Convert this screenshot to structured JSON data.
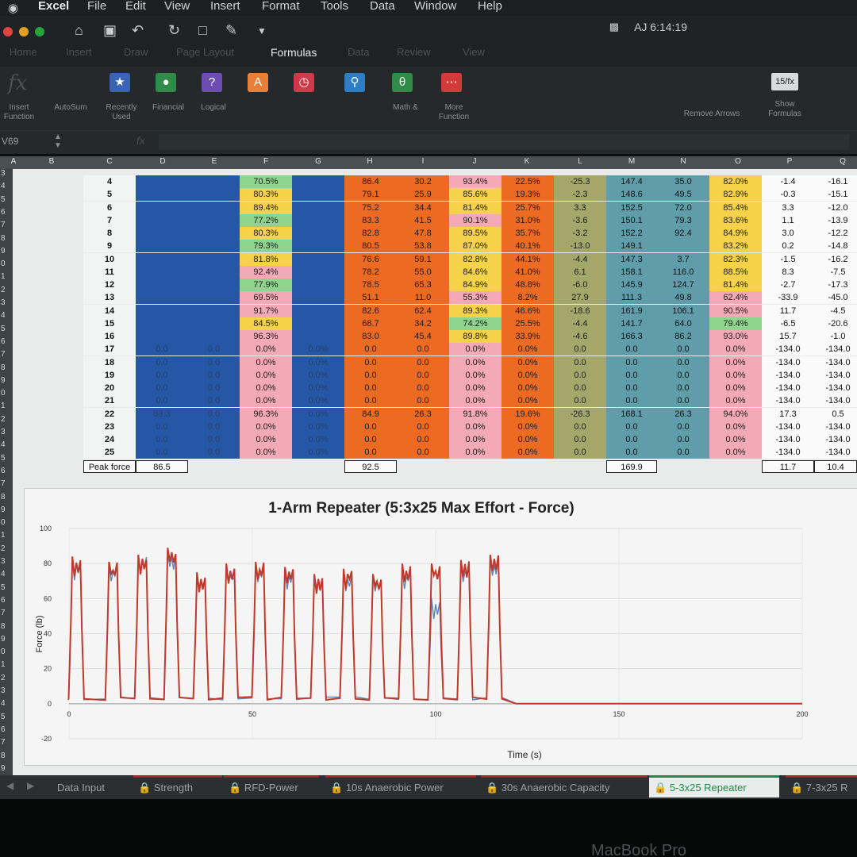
{
  "menu": {
    "app": "Excel",
    "items": [
      "File",
      "Edit",
      "View",
      "Insert",
      "Format",
      "Tools",
      "Data",
      "Window",
      "Help"
    ]
  },
  "status": {
    "clock": "AJ 6:14:19"
  },
  "ribbon_tabs": [
    "Home",
    "Insert",
    "Draw",
    "Page Layout",
    "Formulas",
    "Data",
    "Review",
    "View"
  ],
  "active_ribbon_tab": "Formulas",
  "ribbon_buttons": {
    "insert_function": "Insert Function",
    "autosum": "AutoSum",
    "recently_used": "Recently Used",
    "financial": "Financial",
    "logical": "Logical",
    "math": "Math &",
    "more": "More Function",
    "remove_arrows": "Remove Arrows",
    "show_formulas": "Show Formulas"
  },
  "name_box": "V69",
  "fx_symbol": "fx",
  "column_headers": [
    "A",
    "B",
    "C",
    "D",
    "E",
    "F",
    "G",
    "H",
    "I",
    "J",
    "K",
    "L",
    "M",
    "N",
    "O",
    "P",
    "Q"
  ],
  "row_header_start": 3,
  "table": {
    "rows": [
      [
        "4",
        "",
        "",
        "70.5%",
        "",
        "86.4",
        "30.2",
        "93.4%",
        "22.5%",
        "-25.3",
        "147.4",
        "35.0",
        "82.0%",
        "-1.4",
        "-16.1"
      ],
      [
        "5",
        "",
        "",
        "80.3%",
        "",
        "79.1",
        "25.9",
        "85.6%",
        "19.3%",
        "-2.3",
        "148.6",
        "49.5",
        "82.9%",
        "-0.3",
        "-15.1"
      ],
      [
        "6",
        "",
        "",
        "89.4%",
        "",
        "75.2",
        "34.4",
        "81.4%",
        "25.7%",
        "3.3",
        "152.5",
        "72.0",
        "85.4%",
        "3.3",
        "-12.0"
      ],
      [
        "7",
        "",
        "",
        "77.2%",
        "",
        "83.3",
        "41.5",
        "90.1%",
        "31.0%",
        "-3.6",
        "150.1",
        "79.3",
        "83.6%",
        "1.1",
        "-13.9"
      ],
      [
        "8",
        "",
        "",
        "80.3%",
        "",
        "82.8",
        "47.8",
        "89.5%",
        "35.7%",
        "-3.2",
        "152.2",
        "92.4",
        "84.9%",
        "3.0",
        "-12.2"
      ],
      [
        "9",
        "",
        "",
        "79.3%",
        "",
        "80.5",
        "53.8",
        "87.0%",
        "40.1%",
        "-13.0",
        "149.1",
        "",
        "83.2%",
        "0.2",
        "-14.8"
      ],
      [
        "10",
        "",
        "",
        "81.8%",
        "",
        "76.6",
        "59.1",
        "82.8%",
        "44.1%",
        "-4.4",
        "147.3",
        "3.7",
        "82.3%",
        "-1.5",
        "-16.2"
      ],
      [
        "11",
        "",
        "",
        "92.4%",
        "",
        "78.2",
        "55.0",
        "84.6%",
        "41.0%",
        "6.1",
        "158.1",
        "116.0",
        "88.5%",
        "8.3",
        "-7.5"
      ],
      [
        "12",
        "",
        "",
        "77.9%",
        "",
        "78.5",
        "65.3",
        "84.9%",
        "48.8%",
        "-6.0",
        "145.9",
        "124.7",
        "81.4%",
        "-2.7",
        "-17.3"
      ],
      [
        "13",
        "",
        "",
        "69.5%",
        "",
        "51.1",
        "11.0",
        "55.3%",
        "8.2%",
        "27.9",
        "111.3",
        "49.8",
        "62.4%",
        "-33.9",
        "-45.0"
      ],
      [
        "14",
        "",
        "",
        "91.7%",
        "",
        "82.6",
        "62.4",
        "89.3%",
        "46.6%",
        "-18.6",
        "161.9",
        "106.1",
        "90.5%",
        "11.7",
        "-4.5"
      ],
      [
        "15",
        "",
        "",
        "84.5%",
        "",
        "68.7",
        "34.2",
        "74.2%",
        "25.5%",
        "-4.4",
        "141.7",
        "64.0",
        "79.4%",
        "-6.5",
        "-20.6"
      ],
      [
        "16",
        "",
        "",
        "96.3%",
        "",
        "83.0",
        "45.4",
        "89.8%",
        "33.9%",
        "-4.6",
        "166.3",
        "86.2",
        "93.0%",
        "15.7",
        "-1.0"
      ],
      [
        "17",
        "0.0",
        "0.0",
        "0.0%",
        "0.0%",
        "0.0",
        "0.0",
        "0.0%",
        "0.0%",
        "0.0",
        "0.0",
        "0.0",
        "0.0%",
        "-134.0",
        "-134.0"
      ],
      [
        "18",
        "0.0",
        "0.0",
        "0.0%",
        "0.0%",
        "0.0",
        "0.0",
        "0.0%",
        "0.0%",
        "0.0",
        "0.0",
        "0.0",
        "0.0%",
        "-134.0",
        "-134.0"
      ],
      [
        "19",
        "0.0",
        "0.0",
        "0.0%",
        "0.0%",
        "0.0",
        "0.0",
        "0.0%",
        "0.0%",
        "0.0",
        "0.0",
        "0.0",
        "0.0%",
        "-134.0",
        "-134.0"
      ],
      [
        "20",
        "0.0",
        "0.0",
        "0.0%",
        "0.0%",
        "0.0",
        "0.0",
        "0.0%",
        "0.0%",
        "0.0",
        "0.0",
        "0.0",
        "0.0%",
        "-134.0",
        "-134.0"
      ],
      [
        "21",
        "0.0",
        "0.0",
        "0.0%",
        "0.0%",
        "0.0",
        "0.0",
        "0.0%",
        "0.0%",
        "0.0",
        "0.0",
        "0.0",
        "0.0%",
        "-134.0",
        "-134.0"
      ],
      [
        "22",
        "83.3",
        "0.0",
        "96.3%",
        "0.0%",
        "84.9",
        "26.3",
        "91.8%",
        "19.6%",
        "-26.3",
        "168.1",
        "26.3",
        "94.0%",
        "17.3",
        "0.5"
      ],
      [
        "23",
        "0.0",
        "0.0",
        "0.0%",
        "0.0%",
        "0.0",
        "0.0",
        "0.0%",
        "0.0%",
        "0.0",
        "0.0",
        "0.0",
        "0.0%",
        "-134.0",
        "-134.0"
      ],
      [
        "24",
        "0.0",
        "0.0",
        "0.0%",
        "0.0%",
        "0.0",
        "0.0",
        "0.0%",
        "0.0%",
        "0.0",
        "0.0",
        "0.0",
        "0.0%",
        "-134.0",
        "-134.0"
      ],
      [
        "25",
        "0.0",
        "0.0",
        "0.0%",
        "0.0%",
        "0.0",
        "0.0",
        "0.0%",
        "0.0%",
        "0.0",
        "0.0",
        "0.0",
        "0.0%",
        "-134.0",
        "-134.0"
      ]
    ],
    "peak_label": "Peak force",
    "peak_values": {
      "D": "86.5",
      "H": "92.5",
      "M": "169.9",
      "P": "11.7",
      "Q": "10.4"
    }
  },
  "colors": {
    "blue": "#2457a6",
    "orange": "#ec6a22",
    "pink": "#f3a9b6",
    "yellow": "#f5d24a",
    "green": "#8fd48c",
    "olive": "#a5a66a",
    "teal": "#5f9dab",
    "series_red": "#c0392b",
    "series_blue": "#5b86b8"
  },
  "chart_data": {
    "type": "line",
    "title": "1-Arm Repeater (5:3x25 Max Effort - Force)",
    "xlabel": "Time (s)",
    "ylabel": "Force (lb)",
    "xlim": [
      0,
      200
    ],
    "ylim": [
      -20,
      100
    ],
    "xticks": [
      0,
      50,
      100,
      150,
      200
    ],
    "yticks": [
      -20,
      0,
      20,
      40,
      60,
      80,
      100
    ],
    "grid": true,
    "reps": [
      {
        "start": 0.5,
        "end": 3.5,
        "peak": 84,
        "peak2": 82
      },
      {
        "start": 10.5,
        "end": 13.5,
        "peak": 81,
        "peak2": 79
      },
      {
        "start": 18.5,
        "end": 21.5,
        "peak": 85,
        "peak2": 84
      },
      {
        "start": 26.5,
        "end": 29.5,
        "peak": 89,
        "peak2": 86
      },
      {
        "start": 34.5,
        "end": 37.5,
        "peak": 75,
        "peak2": 74
      },
      {
        "start": 42.5,
        "end": 45.5,
        "peak": 80,
        "peak2": 76
      },
      {
        "start": 50.5,
        "end": 53.5,
        "peak": 81,
        "peak2": 79
      },
      {
        "start": 58.5,
        "end": 61.5,
        "peak": 78,
        "peak2": 76
      },
      {
        "start": 66.5,
        "end": 69.5,
        "peak": 74,
        "peak2": 73
      },
      {
        "start": 74.5,
        "end": 77.5,
        "peak": 77,
        "peak2": 75
      },
      {
        "start": 82.5,
        "end": 85.5,
        "peak": 74,
        "peak2": 72
      },
      {
        "start": 90.5,
        "end": 93.5,
        "peak": 80,
        "peak2": 77
      },
      {
        "start": 98.5,
        "end": 101.5,
        "peak": 80,
        "peak2": 60
      },
      {
        "start": 106.5,
        "end": 109.5,
        "peak": 82,
        "peak2": 80
      },
      {
        "start": 114.5,
        "end": 117.5,
        "peak": 85,
        "peak2": 83
      }
    ],
    "series": [
      {
        "name": "",
        "color": "#c0392b"
      },
      {
        "name": "",
        "color": "#5b86b8"
      }
    ]
  },
  "sheet_tabs": [
    "Data Input",
    "Strength",
    "RFD-Power",
    "10s Anaerobic Power",
    "30s Anaerobic Capacity",
    "5-3x25 Repeater",
    "7-3x25 R"
  ],
  "active_sheet": "5-3x25 Repeater",
  "bezel_brand": "MacBook Pro"
}
